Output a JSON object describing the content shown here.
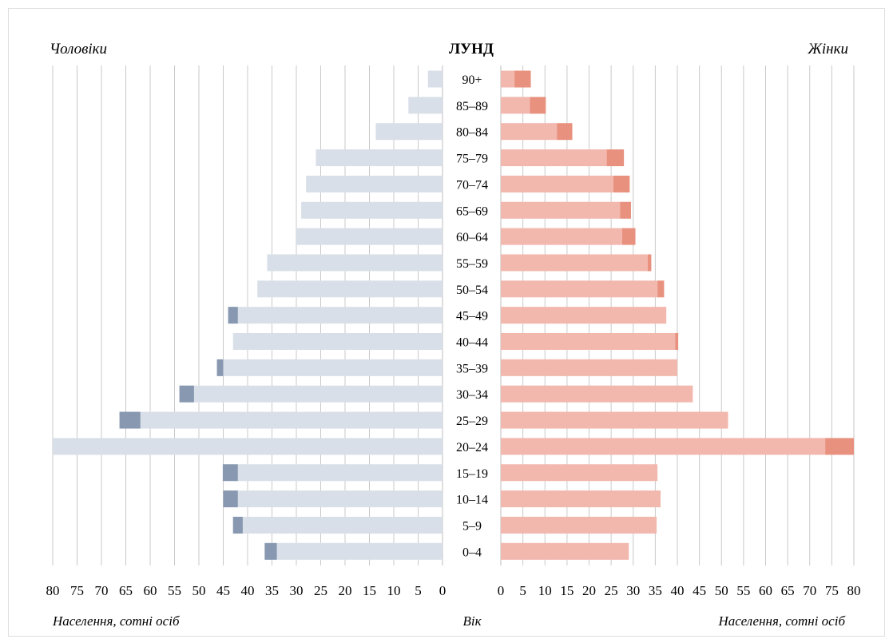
{
  "chart_data": {
    "type": "bar",
    "title": "ЛУНД",
    "left_label": "Чоловіки",
    "right_label": "Жінки",
    "xlabel_left": "Населення, сотні осіб",
    "xlabel_right": "Населення, сотні осіб",
    "center_label": "Вік",
    "xlim": [
      0,
      80
    ],
    "x_ticks": [
      0,
      5,
      10,
      15,
      20,
      25,
      30,
      35,
      40,
      45,
      50,
      55,
      60,
      65,
      70,
      75,
      80
    ],
    "grid": true,
    "categories": [
      "90+",
      "85–89",
      "80–84",
      "75–79",
      "70–74",
      "65–69",
      "60–64",
      "55–59",
      "50–54",
      "45–49",
      "40–44",
      "35–39",
      "30–34",
      "25–29",
      "20–24",
      "15–19",
      "10–14",
      "5–9",
      "0–4"
    ],
    "series": [
      {
        "side": "left",
        "values": [
          3,
          7,
          13.7,
          26,
          28,
          29,
          30,
          36,
          38,
          42,
          43,
          45,
          51,
          62,
          81,
          42,
          42,
          41,
          34
        ]
      },
      {
        "side": "left",
        "values": [
          0,
          0,
          0,
          0,
          0,
          0,
          0,
          0,
          0,
          2,
          0,
          1.3,
          3,
          4.3,
          0,
          3.1,
          3,
          2,
          2.5
        ]
      },
      {
        "side": "right",
        "values": [
          3.1,
          6.6,
          12.7,
          24,
          25.5,
          27,
          27.5,
          33.3,
          35.5,
          37.5,
          39.5,
          40,
          43.5,
          51.5,
          73.5,
          35.5,
          36.2,
          35.3,
          29
        ]
      },
      {
        "side": "right",
        "values": [
          3.7,
          3.6,
          3.5,
          3.9,
          3.7,
          2.5,
          3,
          0.8,
          1.5,
          0,
          0.7,
          0,
          0,
          0,
          7,
          0,
          0,
          0,
          0
        ]
      }
    ],
    "colors": {
      "male_base": "#d9dfe8",
      "male_extra": "#8798b0",
      "female_base": "#f2b7ad",
      "female_extra": "#e8917f",
      "grid": "#c9c9c9"
    }
  }
}
